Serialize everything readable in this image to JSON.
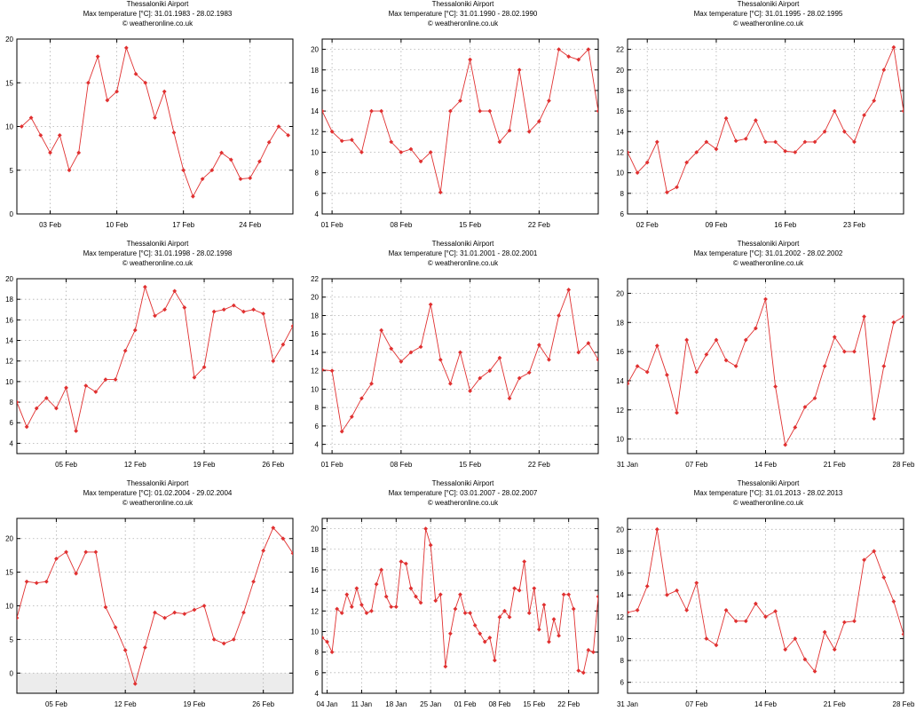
{
  "colors": {
    "line": "#e03030",
    "marker": "#e03030",
    "grid": "#b0b0b0",
    "below_zero": "#ececec"
  },
  "chart_data": [
    {
      "type": "line",
      "title": [
        "Thessaloniki Airport",
        "Max temperature [°C]: 31.01.1983 - 28.02.1983",
        "© weatheronline.co.uk"
      ],
      "xticks": [
        {
          "x": 3,
          "label": "03 Feb"
        },
        {
          "x": 10,
          "label": "10 Feb"
        },
        {
          "x": 17,
          "label": "17 Feb"
        },
        {
          "x": 24,
          "label": "24 Feb"
        }
      ],
      "xlim": [
        -0.5,
        28.5
      ],
      "ylim": [
        0,
        20
      ],
      "yticks": [
        0,
        5,
        10,
        15,
        20
      ],
      "series": [
        {
          "values": [
            10,
            11,
            9,
            7,
            9,
            5,
            7,
            15,
            18,
            13,
            14,
            19,
            16,
            15,
            11,
            14,
            9.3,
            5,
            2,
            4,
            5,
            7,
            6.2,
            4,
            4.1,
            6,
            8.2,
            10,
            9
          ]
        }
      ]
    },
    {
      "type": "line",
      "title": [
        "Thessaloniki Airport",
        "Max temperature [°C]: 31.01.1990 - 28.02.1990",
        "© weatheronline.co.uk"
      ],
      "xticks": [
        {
          "x": 1,
          "label": "01 Feb"
        },
        {
          "x": 8,
          "label": "08 Feb"
        },
        {
          "x": 15,
          "label": "15 Feb"
        },
        {
          "x": 22,
          "label": "22 Feb"
        }
      ],
      "xlim": [
        0,
        28
      ],
      "ylim": [
        4,
        21
      ],
      "yticks": [
        4,
        6,
        8,
        10,
        12,
        14,
        16,
        18,
        20
      ],
      "series": [
        {
          "values": [
            14,
            12,
            11.1,
            11.2,
            10,
            14,
            14,
            11,
            10,
            10.3,
            9.1,
            10,
            6.1,
            14,
            15,
            19,
            14,
            14,
            11,
            12.1,
            18,
            12,
            13,
            15,
            20,
            19.3,
            19,
            20,
            14
          ]
        }
      ]
    },
    {
      "type": "line",
      "title": [
        "Thessaloniki Airport",
        "Max temperature [°C]: 31.01.1995 - 28.02.1995",
        "© weatheronline.co.uk"
      ],
      "xticks": [
        {
          "x": 2,
          "label": "02 Feb"
        },
        {
          "x": 9,
          "label": "09 Feb"
        },
        {
          "x": 16,
          "label": "16 Feb"
        },
        {
          "x": 23,
          "label": "23 Feb"
        }
      ],
      "xlim": [
        0,
        28
      ],
      "ylim": [
        6,
        23
      ],
      "yticks": [
        6,
        8,
        10,
        12,
        14,
        16,
        18,
        20,
        22
      ],
      "series": [
        {
          "values": [
            12,
            10,
            11,
            13,
            8.1,
            8.6,
            11,
            12,
            13,
            12.3,
            15.3,
            13.1,
            13.3,
            15.1,
            13,
            13,
            12.1,
            12,
            13,
            13,
            14,
            16,
            14,
            13,
            15.6,
            17,
            20,
            22.2,
            16
          ]
        }
      ]
    },
    {
      "type": "line",
      "title": [
        "Thessaloniki Airport",
        "Max temperature [°C]: 31.01.1998 - 28.02.1998",
        "© weatheronline.co.uk"
      ],
      "xticks": [
        {
          "x": 5,
          "label": "05 Feb"
        },
        {
          "x": 12,
          "label": "12 Feb"
        },
        {
          "x": 19,
          "label": "19 Feb"
        },
        {
          "x": 26,
          "label": "26 Feb"
        }
      ],
      "xlim": [
        0,
        28
      ],
      "ylim": [
        3,
        20
      ],
      "yticks": [
        4,
        6,
        8,
        10,
        12,
        14,
        16,
        18,
        20
      ],
      "series": [
        {
          "values": [
            8,
            5.6,
            7.4,
            8.4,
            7.4,
            9.4,
            5.2,
            9.6,
            9,
            10.2,
            10.2,
            13,
            15,
            19.2,
            16.4,
            17,
            18.8,
            17.2,
            10.4,
            11.4,
            16.8,
            17,
            17.4,
            16.8,
            17,
            16.6,
            12,
            13.6,
            15.4
          ]
        }
      ]
    },
    {
      "type": "line",
      "title": [
        "Thessaloniki Airport",
        "Max temperature [°C]: 31.01.2001 - 28.02.2001",
        "© weatheronline.co.uk"
      ],
      "xticks": [
        {
          "x": 1,
          "label": "01 Feb"
        },
        {
          "x": 8,
          "label": "08 Feb"
        },
        {
          "x": 15,
          "label": "15 Feb"
        },
        {
          "x": 22,
          "label": "22 Feb"
        }
      ],
      "xlim": [
        0,
        28
      ],
      "ylim": [
        3,
        22
      ],
      "yticks": [
        4,
        6,
        8,
        10,
        12,
        14,
        16,
        18,
        20,
        22
      ],
      "series": [
        {
          "values": [
            12.1,
            12,
            5.4,
            7,
            9,
            10.6,
            16.4,
            14.4,
            13,
            14,
            14.6,
            19.2,
            13.2,
            10.6,
            14,
            9.8,
            11.2,
            12,
            13.4,
            9,
            11.2,
            11.8,
            14.8,
            13.2,
            18,
            20.8,
            14,
            15,
            13.2
          ]
        }
      ]
    },
    {
      "type": "line",
      "title": [
        "Thessaloniki Airport",
        "Max temperature [°C]: 31.01.2002 - 28.02.2002",
        "© weatheronline.co.uk"
      ],
      "xticks": [
        {
          "x": 0,
          "label": "31 Jan"
        },
        {
          "x": 7,
          "label": "07 Feb"
        },
        {
          "x": 14,
          "label": "14 Feb"
        },
        {
          "x": 21,
          "label": "21 Feb"
        },
        {
          "x": 28,
          "label": "28 Feb"
        }
      ],
      "xlim": [
        0,
        28
      ],
      "ylim": [
        9,
        21
      ],
      "yticks": [
        10,
        12,
        14,
        16,
        18,
        20
      ],
      "series": [
        {
          "values": [
            13.8,
            15,
            14.6,
            16.4,
            14.4,
            11.8,
            16.8,
            14.6,
            15.8,
            16.8,
            15.4,
            15,
            16.8,
            17.6,
            19.6,
            13.6,
            9.6,
            10.8,
            12.2,
            12.8,
            15,
            17,
            16,
            16,
            18.4,
            11.4,
            15,
            18,
            18.4
          ]
        }
      ]
    },
    {
      "type": "line",
      "title": [
        "Thessaloniki Airport",
        "Max temperature [°C]: 01.02.2004 - 29.02.2004",
        "© weatheronline.co.uk"
      ],
      "xticks": [
        {
          "x": 4,
          "label": "05 Feb"
        },
        {
          "x": 11,
          "label": "12 Feb"
        },
        {
          "x": 18,
          "label": "19 Feb"
        },
        {
          "x": 25,
          "label": "26 Feb"
        }
      ],
      "xlim": [
        0,
        28
      ],
      "ylim": [
        -3,
        23
      ],
      "yticks": [
        0,
        5,
        10,
        15,
        20
      ],
      "shade_below_zero": true,
      "series": [
        {
          "values": [
            8.2,
            13.6,
            13.4,
            13.6,
            17,
            18,
            14.8,
            18,
            18,
            9.8,
            6.8,
            3.4,
            -1.6,
            3.8,
            9,
            8.2,
            9,
            8.8,
            9.4,
            10,
            5,
            4.4,
            5,
            9,
            13.6,
            18.2,
            21.6,
            20,
            17.8
          ]
        }
      ]
    },
    {
      "type": "line",
      "title": [
        "Thessaloniki Airport",
        "Max temperature [°C]: 03.01.2007 - 28.02.2007",
        "© weatheronline.co.uk"
      ],
      "xticks": [
        {
          "x": 1,
          "label": "04 Jan"
        },
        {
          "x": 8,
          "label": "11 Jan"
        },
        {
          "x": 15,
          "label": "18 Jan"
        },
        {
          "x": 22,
          "label": "25 Jan"
        },
        {
          "x": 29,
          "label": "01 Feb"
        },
        {
          "x": 36,
          "label": "08 Feb"
        },
        {
          "x": 43,
          "label": "15 Feb"
        },
        {
          "x": 50,
          "label": "22 Feb"
        }
      ],
      "xlim": [
        0,
        56
      ],
      "ylim": [
        4,
        21
      ],
      "yticks": [
        4,
        6,
        8,
        10,
        12,
        14,
        16,
        18,
        20
      ],
      "series": [
        {
          "values": [
            9.4,
            9,
            8,
            12.2,
            11.8,
            13.6,
            12.4,
            14.2,
            12.6,
            11.8,
            12,
            14.6,
            16,
            13.4,
            12.4,
            12.4,
            16.8,
            16.6,
            14.2,
            13.4,
            12.8,
            20,
            18.4,
            13,
            13.6,
            6.6,
            9.8,
            12.2,
            13.6,
            11.8,
            11.8,
            10.6,
            9.8,
            9,
            9.4,
            7.2,
            11.4,
            12,
            11.4,
            14.2,
            14,
            16.8,
            11.8,
            14.2,
            10.2,
            12.6,
            9,
            11.2,
            9.6,
            13.6,
            13.6,
            12.2,
            6.2,
            6,
            8.2,
            8,
            13.4
          ]
        }
      ]
    },
    {
      "type": "line",
      "title": [
        "Thessaloniki Airport",
        "Max temperature [°C]: 31.01.2013 - 28.02.2013",
        "© weatheronline.co.uk"
      ],
      "xticks": [
        {
          "x": 0,
          "label": "31 Jan"
        },
        {
          "x": 7,
          "label": "07 Feb"
        },
        {
          "x": 14,
          "label": "14 Feb"
        },
        {
          "x": 21,
          "label": "21 Feb"
        },
        {
          "x": 28,
          "label": "28 Feb"
        }
      ],
      "xlim": [
        0,
        28
      ],
      "ylim": [
        5,
        21
      ],
      "yticks": [
        6,
        8,
        10,
        12,
        14,
        16,
        18,
        20
      ],
      "series": [
        {
          "values": [
            12.4,
            12.6,
            14.8,
            20,
            14,
            14.4,
            12.6,
            15.1,
            10,
            9.4,
            12.6,
            11.6,
            11.6,
            13.2,
            12,
            12.5,
            9,
            10,
            8.1,
            7,
            10.6,
            9,
            11.5,
            11.6,
            17.2,
            18,
            15.6,
            13.4,
            10.4
          ]
        }
      ]
    }
  ]
}
